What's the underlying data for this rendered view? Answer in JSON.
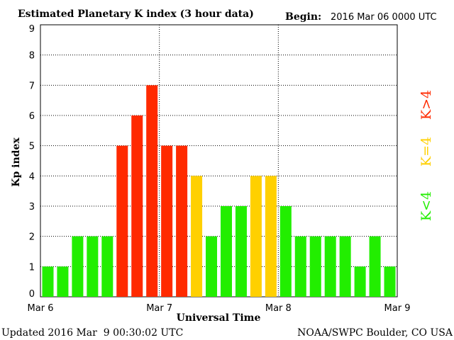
{
  "header": {
    "title": "Estimated Planetary K index (3 hour data)",
    "begin_label": "Begin:",
    "begin_value": "2016 Mar 06 0000 UTC"
  },
  "footer": {
    "updated": "Updated 2016 Mar  9 00:30:02 UTC",
    "source": "NOAA/SWPC Boulder, CO USA"
  },
  "legend": {
    "high": {
      "label": "K>4",
      "color": "#ff2a00"
    },
    "equal": {
      "label": "K=4",
      "color": "#ffd000"
    },
    "low": {
      "label": "K<4",
      "color": "#22ee00"
    }
  },
  "chart_data": {
    "type": "bar",
    "title": "Estimated Planetary K index (3 hour data)",
    "xlabel": "Universal Time",
    "ylabel": "Kp index",
    "ylim": [
      0,
      9
    ],
    "yticks": [
      "0",
      "1",
      "2",
      "3",
      "4",
      "5",
      "6",
      "7",
      "8",
      "9"
    ],
    "xticks": [
      "Mar 6",
      "Mar 7",
      "Mar 8",
      "Mar 9"
    ],
    "grid": true,
    "legend_position": "right",
    "values": [
      1,
      1,
      2,
      2,
      2,
      5,
      6,
      7,
      5,
      5,
      4,
      2,
      3,
      3,
      4,
      4,
      3,
      2,
      2,
      2,
      2,
      1,
      2,
      1
    ]
  }
}
